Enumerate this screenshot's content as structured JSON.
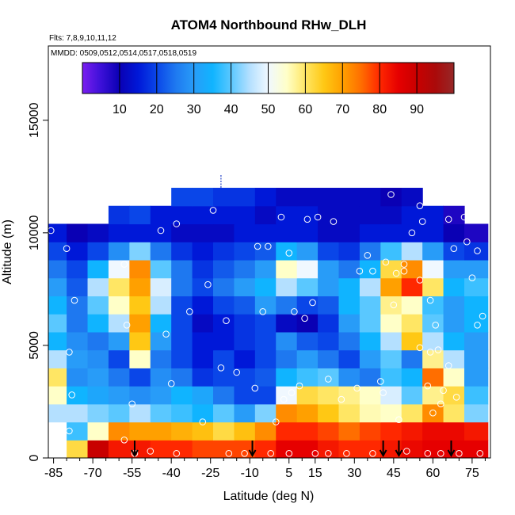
{
  "chart_data": {
    "type": "heatmap",
    "title": "ATOM4 Northbound RHw_DLH",
    "notes": [
      "Flts: 7,8,9,10,11,12",
      "MMDD: 0509,0512,0514,0517,0518,0519"
    ],
    "xlabel": "Latitude (deg N)",
    "ylabel": "Altitude (m)",
    "xlim": [
      -87,
      82
    ],
    "ylim": [
      0,
      18300
    ],
    "x_ticks": [
      -85,
      -70,
      -55,
      -40,
      -25,
      -10,
      5,
      15,
      30,
      45,
      60,
      75
    ],
    "x_tick_labels": [
      "-85",
      "-70",
      "-55",
      "-40",
      "-25",
      "-10",
      "5",
      "15",
      "30",
      "45",
      "60",
      "75"
    ],
    "x_minor_ticks": [
      -80,
      -75,
      -65,
      -60,
      -50,
      -45,
      -35,
      -30,
      -20,
      -15,
      -5,
      0,
      10,
      20,
      25,
      35,
      40,
      50,
      55,
      65,
      70,
      80
    ],
    "y_ticks": [
      0,
      5000,
      10000,
      15000
    ],
    "y_tick_labels": [
      "0",
      "5000",
      "10000",
      "15000"
    ],
    "colorbar": {
      "range": [
        0,
        100
      ],
      "ticks": [
        10,
        20,
        30,
        40,
        50,
        60,
        70,
        80,
        90
      ],
      "tick_labels": [
        "10",
        "20",
        "30",
        "40",
        "50",
        "60",
        "70",
        "80",
        "90"
      ],
      "stops": [
        {
          "v": 0,
          "c": "#7a1ef0"
        },
        {
          "v": 5,
          "c": "#3c10d8"
        },
        {
          "v": 10,
          "c": "#0a00b4"
        },
        {
          "v": 15,
          "c": "#0018d8"
        },
        {
          "v": 20,
          "c": "#0a46e8"
        },
        {
          "v": 25,
          "c": "#1e78f0"
        },
        {
          "v": 30,
          "c": "#289cf8"
        },
        {
          "v": 35,
          "c": "#10b4ff"
        },
        {
          "v": 40,
          "c": "#5ac8ff"
        },
        {
          "v": 45,
          "c": "#b4e0ff"
        },
        {
          "v": 50,
          "c": "#f0f8ff"
        },
        {
          "v": 55,
          "c": "#ffffc8"
        },
        {
          "v": 60,
          "c": "#ffe664"
        },
        {
          "v": 65,
          "c": "#ffc814"
        },
        {
          "v": 70,
          "c": "#ffa000"
        },
        {
          "v": 75,
          "c": "#ff6e00"
        },
        {
          "v": 80,
          "c": "#ff2800"
        },
        {
          "v": 85,
          "c": "#e60000"
        },
        {
          "v": 90,
          "c": "#c80000"
        },
        {
          "v": 95,
          "c": "#aa0a0a"
        },
        {
          "v": 100,
          "c": "#962828"
        }
      ]
    },
    "heatmap": {
      "lat_edges": [
        -87,
        -80,
        -72,
        -64,
        -56,
        -48,
        -40,
        -32,
        -24,
        -16,
        -8,
        0,
        8,
        16,
        24,
        32,
        40,
        48,
        56,
        64,
        72,
        81
      ],
      "alt_edges": [
        0,
        800,
        1600,
        2400,
        3200,
        4000,
        4800,
        5600,
        6400,
        7200,
        8000,
        8800,
        9600,
        10400,
        11200,
        12000
      ],
      "rh": [
        [
          null,
          62,
          90,
          82,
          82,
          80,
          80,
          78,
          78,
          78,
          80,
          85,
          85,
          82,
          80,
          80,
          82,
          84,
          85,
          85,
          85
        ],
        [
          null,
          38,
          55,
          72,
          70,
          70,
          68,
          66,
          62,
          66,
          72,
          80,
          80,
          78,
          75,
          78,
          80,
          82,
          84,
          84,
          82
        ],
        [
          45,
          45,
          42,
          40,
          45,
          40,
          38,
          35,
          40,
          30,
          42,
          72,
          70,
          65,
          60,
          56,
          55,
          60,
          72,
          60,
          42
        ],
        [
          55,
          35,
          32,
          30,
          28,
          30,
          35,
          32,
          25,
          20,
          20,
          50,
          62,
          60,
          58,
          55,
          48,
          40,
          58,
          62,
          38
        ],
        [
          60,
          28,
          30,
          25,
          20,
          28,
          25,
          18,
          20,
          20,
          22,
          35,
          38,
          40,
          28,
          25,
          38,
          35,
          75,
          55,
          30
        ],
        [
          45,
          30,
          28,
          20,
          55,
          25,
          20,
          15,
          20,
          15,
          20,
          25,
          30,
          25,
          20,
          30,
          40,
          25,
          58,
          45,
          30
        ],
        [
          35,
          28,
          25,
          30,
          65,
          30,
          20,
          15,
          15,
          18,
          20,
          28,
          22,
          20,
          25,
          35,
          45,
          65,
          45,
          35,
          30
        ],
        [
          40,
          25,
          35,
          45,
          70,
          35,
          20,
          12,
          15,
          18,
          20,
          12,
          10,
          18,
          30,
          40,
          55,
          60,
          40,
          30,
          35
        ],
        [
          35,
          25,
          40,
          55,
          65,
          45,
          20,
          15,
          20,
          22,
          30,
          25,
          20,
          22,
          35,
          40,
          58,
          55,
          38,
          30,
          35
        ],
        [
          30,
          22,
          45,
          60,
          70,
          48,
          25,
          20,
          25,
          30,
          35,
          45,
          40,
          30,
          35,
          45,
          70,
          80,
          60,
          35,
          38
        ],
        [
          25,
          20,
          35,
          50,
          72,
          40,
          25,
          18,
          22,
          25,
          30,
          55,
          50,
          30,
          25,
          35,
          62,
          72,
          50,
          30,
          30
        ],
        [
          20,
          15,
          20,
          28,
          42,
          25,
          18,
          15,
          18,
          20,
          22,
          35,
          30,
          20,
          18,
          25,
          38,
          45,
          30,
          20,
          18
        ],
        [
          15,
          10,
          12,
          15,
          15,
          15,
          12,
          12,
          12,
          15,
          15,
          15,
          15,
          12,
          12,
          15,
          15,
          15,
          15,
          10,
          8
        ],
        [
          null,
          null,
          null,
          18,
          20,
          15,
          15,
          15,
          15,
          15,
          12,
          15,
          15,
          12,
          12,
          12,
          12,
          15,
          15,
          8,
          null
        ],
        [
          null,
          null,
          null,
          null,
          null,
          null,
          20,
          20,
          18,
          18,
          15,
          12,
          12,
          12,
          12,
          12,
          10,
          12,
          null,
          null,
          null
        ]
      ]
    },
    "samples": [
      [
        -86,
        10100
      ],
      [
        -80,
        9300
      ],
      [
        -77,
        7000
      ],
      [
        -79,
        4700
      ],
      [
        -78,
        2800
      ],
      [
        -79,
        1200
      ],
      [
        -71,
        10600
      ],
      [
        -58,
        8600
      ],
      [
        -57,
        5900
      ],
      [
        -55,
        2400
      ],
      [
        -58,
        800
      ],
      [
        -54,
        200
      ],
      [
        -48,
        300
      ],
      [
        -44,
        10100
      ],
      [
        -42,
        5500
      ],
      [
        -40,
        3300
      ],
      [
        -38,
        10400
      ],
      [
        -38,
        200
      ],
      [
        -33,
        6500
      ],
      [
        -28,
        1600
      ],
      [
        -26,
        7700
      ],
      [
        -24,
        11000
      ],
      [
        -21,
        4000
      ],
      [
        -19,
        6100
      ],
      [
        -18,
        200
      ],
      [
        -15,
        3800
      ],
      [
        -12,
        200
      ],
      [
        -8,
        3100
      ],
      [
        -7,
        9400
      ],
      [
        -5,
        6500
      ],
      [
        -3,
        9400
      ],
      [
        -2,
        200
      ],
      [
        0,
        1600
      ],
      [
        2,
        10700
      ],
      [
        3,
        2600
      ],
      [
        5,
        9100
      ],
      [
        5,
        200
      ],
      [
        6,
        2900
      ],
      [
        7,
        6500
      ],
      [
        9,
        3200
      ],
      [
        11,
        6200
      ],
      [
        12,
        10600
      ],
      [
        14,
        6900
      ],
      [
        15,
        200
      ],
      [
        16,
        10700
      ],
      [
        20,
        3500
      ],
      [
        20,
        200
      ],
      [
        22,
        10500
      ],
      [
        25,
        2600
      ],
      [
        27,
        200
      ],
      [
        31,
        3100
      ],
      [
        32,
        8300
      ],
      [
        35,
        9000
      ],
      [
        37,
        8300
      ],
      [
        37,
        200
      ],
      [
        40,
        3400
      ],
      [
        41,
        2900
      ],
      [
        42,
        8700
      ],
      [
        44,
        11700
      ],
      [
        45,
        6800
      ],
      [
        46,
        8200
      ],
      [
        47,
        1700
      ],
      [
        49,
        8300
      ],
      [
        49,
        8600
      ],
      [
        50,
        300
      ],
      [
        52,
        10000
      ],
      [
        55,
        7900
      ],
      [
        55,
        4900
      ],
      [
        56,
        10500
      ],
      [
        58,
        3200
      ],
      [
        58,
        200
      ],
      [
        59,
        4700
      ],
      [
        59,
        7000
      ],
      [
        61,
        5900
      ],
      [
        62,
        4800
      ],
      [
        63,
        200
      ],
      [
        64,
        3000
      ],
      [
        66,
        4100
      ],
      [
        66,
        10600
      ],
      [
        68,
        9300
      ],
      [
        69,
        2700
      ],
      [
        70,
        200
      ],
      [
        72,
        10700
      ],
      [
        73,
        9600
      ],
      [
        75,
        8000
      ],
      [
        77,
        5900
      ],
      [
        77,
        9200
      ],
      [
        78,
        200
      ],
      [
        79,
        6300
      ],
      [
        55,
        11200
      ],
      [
        63,
        2400
      ],
      [
        60,
        2000
      ]
    ],
    "flight_arrows_x": [
      -54,
      -9,
      41,
      47,
      67
    ],
    "colors": {
      "sample_marker": "#ffffff",
      "arrow": "#000000",
      "top_marker": "#2846c8",
      "frame": "#000000"
    }
  }
}
